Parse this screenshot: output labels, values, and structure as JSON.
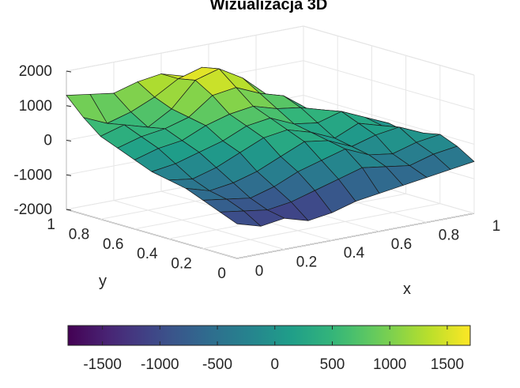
{
  "chart_data": {
    "type": "surface",
    "title": "Wizualizacja 3D",
    "xlabel": "x",
    "ylabel": "y",
    "zlabel": "",
    "xlim": [
      0,
      1
    ],
    "ylim": [
      0,
      1
    ],
    "zlim": [
      -2000,
      2000
    ],
    "grid": true,
    "colormap": "viridis",
    "x_ticks": [
      "0",
      "0.2",
      "0.4",
      "0.6",
      "0.8",
      "1"
    ],
    "y_ticks": [
      "0",
      "0.2",
      "0.4",
      "0.6",
      "0.8",
      "1"
    ],
    "z_ticks": [
      "-2000",
      "-1000",
      "0",
      "1000",
      "2000"
    ],
    "colorbar": {
      "location": "bottom",
      "range": [
        -1800,
        1700
      ],
      "ticks": [
        "-1500",
        "-1000",
        "-500",
        "0",
        "500",
        "1000",
        "1500"
      ],
      "tick_values": [
        -1500,
        -1000,
        -500,
        0,
        500,
        1000,
        1500
      ]
    },
    "x": [
      0,
      0.1,
      0.2,
      0.3,
      0.4,
      0.5,
      0.6,
      0.7,
      0.8,
      0.9,
      1
    ],
    "y": [
      0,
      0.1,
      0.2,
      0.3,
      0.4,
      0.5,
      0.6,
      0.7,
      0.8,
      0.9,
      1
    ],
    "z": [
      [
        -1000,
        -1200,
        -1100,
        -1300,
        -1200,
        -1000,
        -900,
        -800,
        -700,
        -600,
        -500
      ],
      [
        -800,
        -900,
        -1000,
        -900,
        -700,
        -500,
        -300,
        -400,
        -500,
        -300,
        -200
      ],
      [
        -600,
        -700,
        -800,
        -600,
        -300,
        -100,
        100,
        -200,
        -300,
        -100,
        0
      ],
      [
        -400,
        -600,
        -500,
        -300,
        0,
        300,
        200,
        -100,
        100,
        200,
        -100
      ],
      [
        -300,
        -400,
        -200,
        100,
        400,
        500,
        300,
        0,
        300,
        100,
        -200
      ],
      [
        -200,
        -100,
        100,
        300,
        600,
        700,
        400,
        300,
        500,
        200,
        -100
      ],
      [
        0,
        200,
        300,
        600,
        800,
        900,
        700,
        600,
        400,
        100,
        -200
      ],
      [
        200,
        400,
        500,
        700,
        1200,
        1300,
        1000,
        800,
        300,
        0,
        -300
      ],
      [
        400,
        600,
        400,
        800,
        1500,
        1700,
        1300,
        700,
        200,
        -100,
        -400
      ],
      [
        800,
        500,
        700,
        1000,
        1400,
        1600,
        1100,
        600,
        100,
        -200,
        -500
      ],
      [
        1300,
        1200,
        1100,
        1300,
        1400,
        1200,
        900,
        400,
        0,
        -300,
        -600
      ]
    ]
  }
}
